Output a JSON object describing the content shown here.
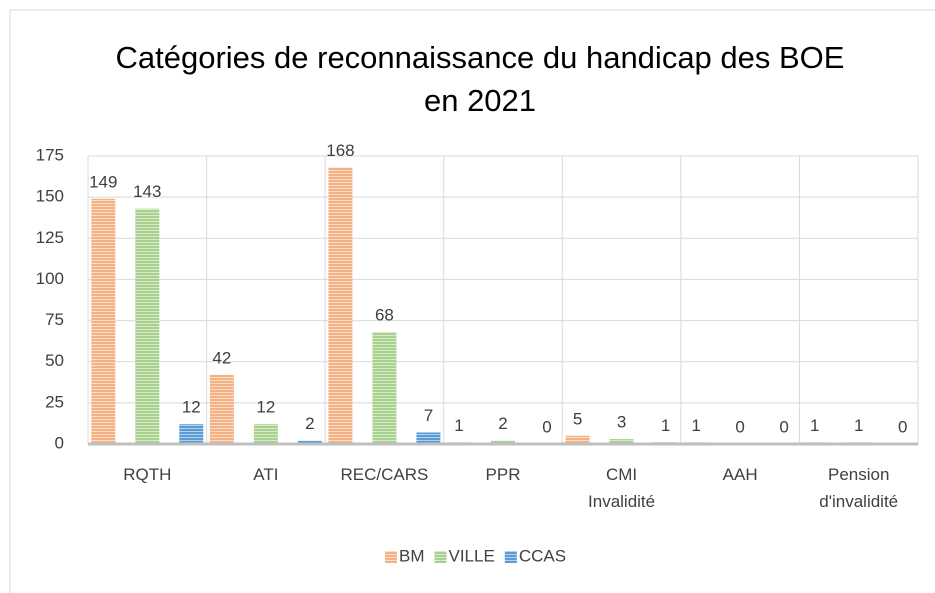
{
  "chart_data": {
    "type": "bar",
    "title": "Catégories de reconnaissance du handicap des BOE en 2021",
    "categories": [
      "RQTH",
      "ATI",
      "REC/CARS",
      "PPR",
      "CMI Invalidité",
      "AAH",
      "Pension d'invalidité"
    ],
    "series": [
      {
        "name": "BM",
        "color": "#f4b183",
        "values": [
          149,
          42,
          168,
          1,
          5,
          1,
          1
        ]
      },
      {
        "name": "VILLE",
        "color": "#a9d18e",
        "values": [
          143,
          12,
          68,
          2,
          3,
          0,
          1
        ]
      },
      {
        "name": "CCAS",
        "color": "#5b9bd5",
        "values": [
          12,
          2,
          7,
          0,
          1,
          0,
          0
        ]
      }
    ],
    "ylim": [
      0,
      175
    ],
    "yticks": [
      0,
      25,
      50,
      75,
      100,
      125,
      150,
      175
    ],
    "grid": true,
    "legend": "bottom"
  }
}
